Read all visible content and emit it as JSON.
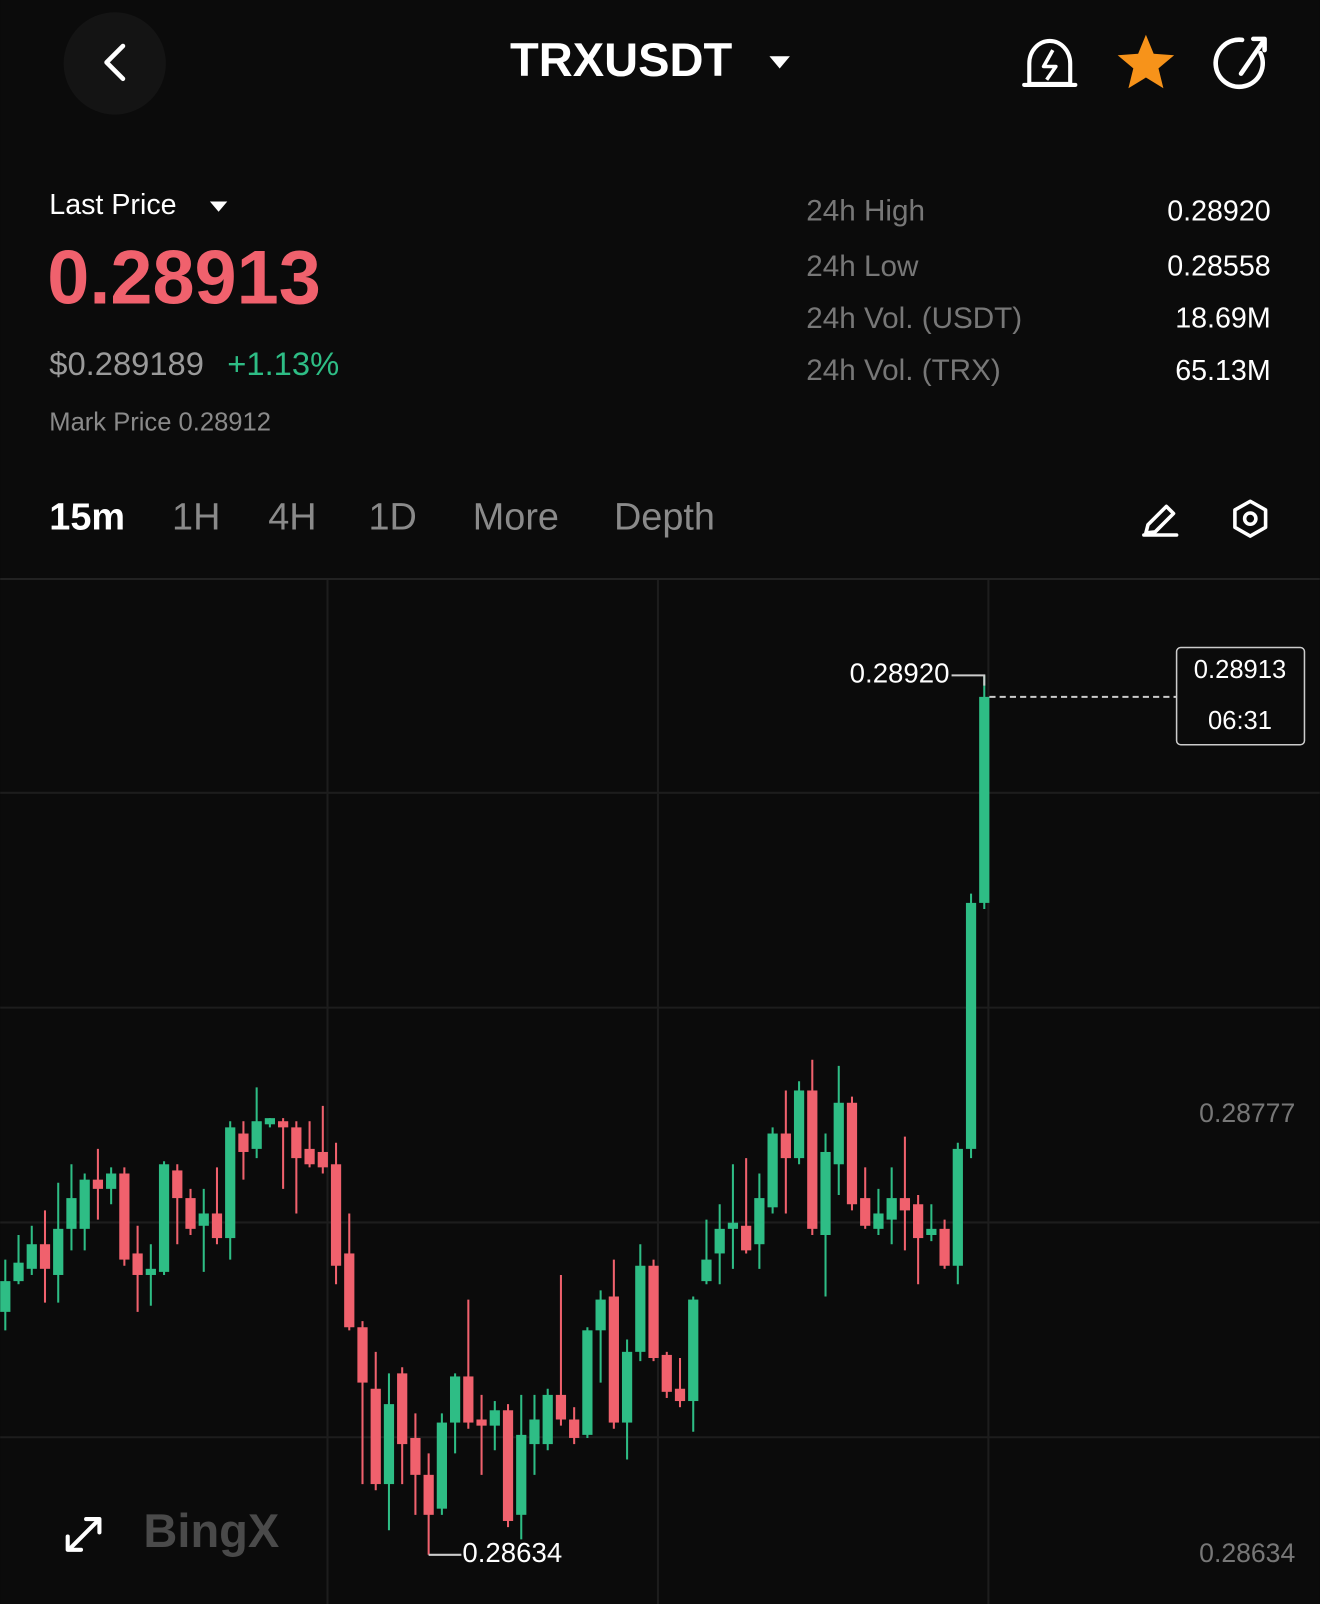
{
  "header": {
    "symbol": "TRXUSDT"
  },
  "ticker": {
    "last_price_label": "Last Price",
    "last_price": "0.28913",
    "usd_price": "$0.289189",
    "change": "+1.13%",
    "mark_price": "Mark Price 0.28912",
    "stats": [
      {
        "label": "24h High",
        "value": "0.28920"
      },
      {
        "label": "24h Low",
        "value": "0.28558"
      },
      {
        "label": "24h Vol. (USDT)",
        "value": "18.69M"
      },
      {
        "label": "24h Vol. (TRX)",
        "value": "65.13M"
      }
    ]
  },
  "tabs": [
    "15m",
    "1H",
    "4H",
    "1D",
    "More",
    "Depth"
  ],
  "watermark": "BingX",
  "chart_data": {
    "type": "candlestick",
    "open": [
      0.28713,
      0.28723,
      0.28727,
      0.28735,
      0.28725,
      0.2874,
      0.2874,
      0.28756,
      0.28753,
      0.28758,
      0.28732,
      0.28725,
      0.28726,
      0.28759,
      0.2875,
      0.28741,
      0.28745,
      0.28737,
      0.28771,
      0.28766,
      0.28774,
      0.28775,
      0.28773,
      0.28766,
      0.28765,
      0.28761,
      0.28732,
      0.28708,
      0.28688,
      0.28657,
      0.28693,
      0.28672,
      0.2866,
      0.28649,
      0.28677,
      0.28692,
      0.28678,
      0.28676,
      0.28681,
      0.28647,
      0.2867,
      0.2867,
      0.28686,
      0.28678,
      0.28673,
      0.28707,
      0.28718,
      0.28677,
      0.287,
      0.28728,
      0.28699,
      0.28688,
      0.28684,
      0.28723,
      0.28732,
      0.2874,
      0.28741,
      0.28735,
      0.28747,
      0.28771,
      0.28763,
      0.28785,
      0.28738,
      0.28761,
      0.28781,
      0.2875,
      0.2874,
      0.28743,
      0.2875,
      0.28748,
      0.28738,
      0.2874,
      0.28728,
      0.28766,
      0.28846
    ],
    "high": [
      0.2873,
      0.28738,
      0.28741,
      0.28746,
      0.28755,
      0.28761,
      0.28758,
      0.28766,
      0.2876,
      0.2876,
      0.28741,
      0.28735,
      0.28762,
      0.28761,
      0.28753,
      0.28753,
      0.2876,
      0.28775,
      0.28775,
      0.28786,
      0.28776,
      0.28776,
      0.28775,
      0.28775,
      0.2878,
      0.28768,
      0.28745,
      0.2871,
      0.287,
      0.28693,
      0.28695,
      0.2868,
      0.28667,
      0.2868,
      0.28693,
      0.28717,
      0.28686,
      0.28684,
      0.28683,
      0.28686,
      0.28686,
      0.28688,
      0.28725,
      0.28682,
      0.28708,
      0.2872,
      0.2873,
      0.28704,
      0.28735,
      0.2873,
      0.287,
      0.28698,
      0.28718,
      0.28743,
      0.28748,
      0.28761,
      0.28763,
      0.28758,
      0.28773,
      0.28785,
      0.28788,
      0.28795,
      0.28771,
      0.28793,
      0.28783,
      0.2876,
      0.28753,
      0.2876,
      0.2877,
      0.28751,
      0.28748,
      0.28743,
      0.28768,
      0.28849,
      0.2892
    ],
    "low": [
      0.28707,
      0.28722,
      0.28725,
      0.28716,
      0.28716,
      0.28733,
      0.28733,
      0.28743,
      0.28748,
      0.28728,
      0.28713,
      0.28715,
      0.28725,
      0.28735,
      0.28738,
      0.28726,
      0.28735,
      0.2873,
      0.28756,
      0.28763,
      0.28773,
      0.28753,
      0.28745,
      0.2876,
      0.28758,
      0.28722,
      0.28707,
      0.28657,
      0.28655,
      0.28642,
      0.28657,
      0.28647,
      0.28634,
      0.28647,
      0.28667,
      0.28675,
      0.2866,
      0.28668,
      0.28643,
      0.28639,
      0.2866,
      0.28668,
      0.28676,
      0.2867,
      0.28672,
      0.2869,
      0.28675,
      0.28665,
      0.28697,
      0.28697,
      0.28685,
      0.28682,
      0.28674,
      0.28722,
      0.28722,
      0.28727,
      0.28732,
      0.28727,
      0.28745,
      0.28745,
      0.28761,
      0.28738,
      0.28718,
      0.28751,
      0.28746,
      0.2874,
      0.28738,
      0.28735,
      0.28733,
      0.28722,
      0.28736,
      0.28727,
      0.28722,
      0.28763,
      0.28844
    ],
    "close": [
      0.28723,
      0.28729,
      0.28735,
      0.28727,
      0.2874,
      0.2875,
      0.28756,
      0.28753,
      0.28758,
      0.2873,
      0.28725,
      0.28727,
      0.28761,
      0.2875,
      0.2874,
      0.28745,
      0.28737,
      0.28773,
      0.28765,
      0.28775,
      0.28776,
      0.28773,
      0.28763,
      0.28761,
      0.2876,
      0.28728,
      0.28708,
      0.2869,
      0.28657,
      0.28683,
      0.2867,
      0.2866,
      0.28647,
      0.28677,
      0.28692,
      0.28677,
      0.28676,
      0.28681,
      0.28645,
      0.28673,
      0.28678,
      0.28686,
      0.28678,
      0.28672,
      0.28707,
      0.28717,
      0.28677,
      0.287,
      0.28728,
      0.28698,
      0.28687,
      0.28684,
      0.28717,
      0.2873,
      0.2874,
      0.28742,
      0.28733,
      0.2875,
      0.28771,
      0.28763,
      0.28785,
      0.2874,
      0.28765,
      0.28781,
      0.28748,
      0.28741,
      0.28745,
      0.2875,
      0.28746,
      0.28737,
      0.2874,
      0.28728,
      0.28766,
      0.28846,
      0.28913
    ],
    "ylim": [
      0.28618,
      0.28951
    ],
    "yticks": [
      0.28777,
      0.28634
    ],
    "high_marker": {
      "value": 0.2892,
      "label": "0.28920"
    },
    "low_marker": 0.28634,
    "countdown": "06:31",
    "up_color": "#2ebd85",
    "down_color": "#f0616d"
  }
}
